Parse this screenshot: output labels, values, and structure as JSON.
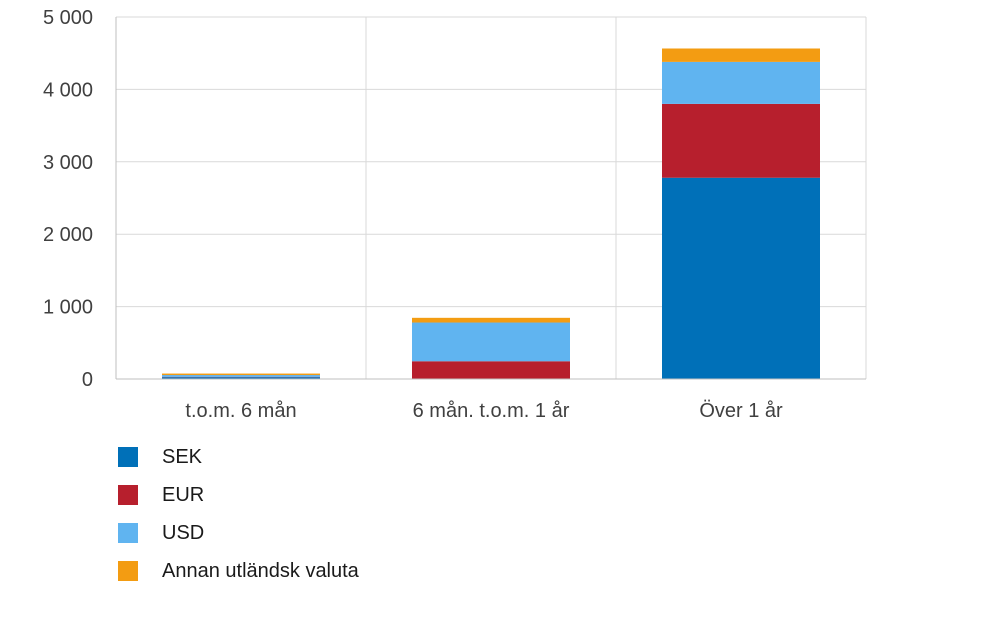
{
  "chart_data": {
    "type": "bar",
    "stacked": true,
    "categories": [
      "t.o.m. 6 mån",
      "6 mån. t.o.m. 1 år",
      "Över 1 år"
    ],
    "series": [
      {
        "name": "SEK",
        "color": "#0070b8",
        "values": [
          25,
          0,
          2780
        ]
      },
      {
        "name": "EUR",
        "color": "#b71f2d",
        "values": [
          5,
          245,
          1020
        ]
      },
      {
        "name": "USD",
        "color": "#60b4f0",
        "values": [
          25,
          535,
          580
        ]
      },
      {
        "name": "Annan utländsk valuta",
        "color": "#f39c12",
        "values": [
          20,
          65,
          185
        ]
      }
    ],
    "ylim": [
      0,
      5000
    ],
    "yticks": [
      0,
      1000,
      2000,
      3000,
      4000,
      5000
    ],
    "ytick_labels": [
      "0",
      "1 000",
      "2 000",
      "3 000",
      "4 000",
      "5 000"
    ],
    "grid": true,
    "legend_position": "bottom-left"
  }
}
